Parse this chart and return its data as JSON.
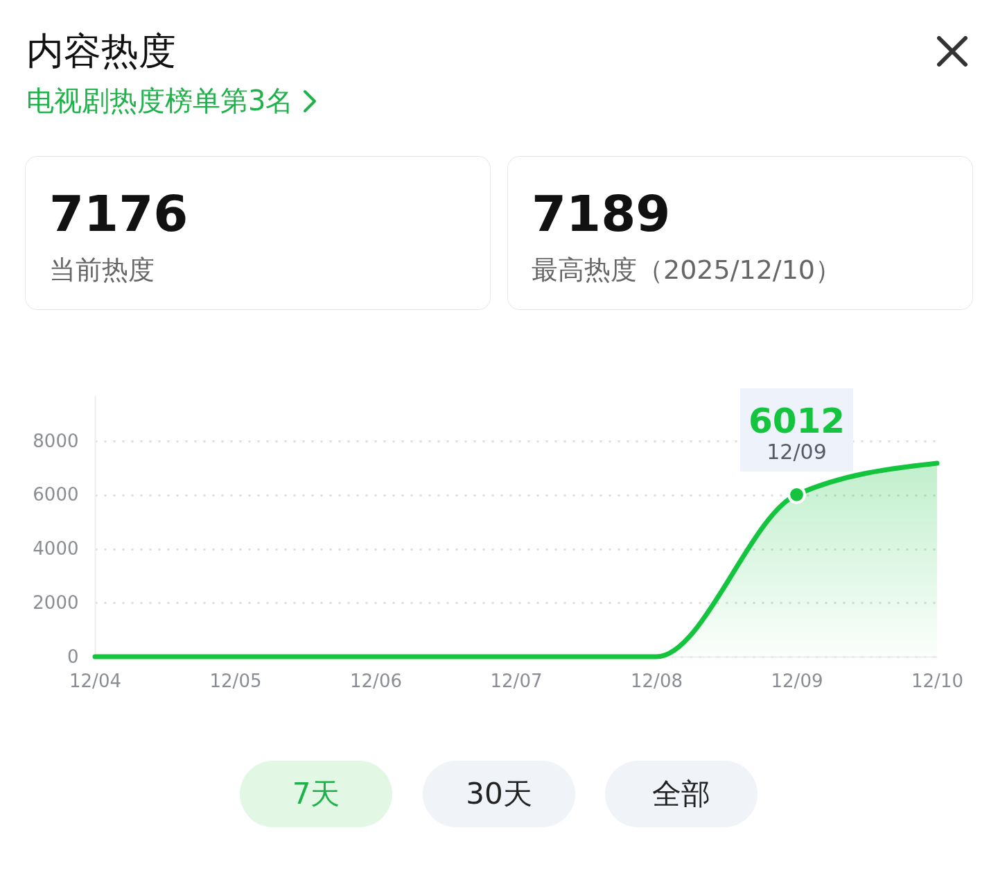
{
  "chart_data": {
    "type": "area",
    "title": "内容热度",
    "subtitle": "电视剧热度榜单第3名",
    "categories": [
      "12/04",
      "12/05",
      "12/06",
      "12/07",
      "12/08",
      "12/09",
      "12/10"
    ],
    "series": [
      {
        "color": "#14c43e",
        "values": [
          0,
          0,
          0,
          0,
          0,
          6012,
          7176
        ]
      }
    ],
    "ylim": [
      0,
      9700
    ],
    "yticks": [
      0,
      2000,
      4000,
      6000,
      8000
    ],
    "grid": "y",
    "annotations": [
      "7176",
      "当前热度",
      "7189",
      "最高热度（2025/12/10）",
      "7天",
      "30天",
      "全部",
      {
        "text": "6012",
        "x": "12/09",
        "y": 6012
      },
      {
        "text": "12/09",
        "x": "12/09",
        "y": 6012
      }
    ]
  }
}
